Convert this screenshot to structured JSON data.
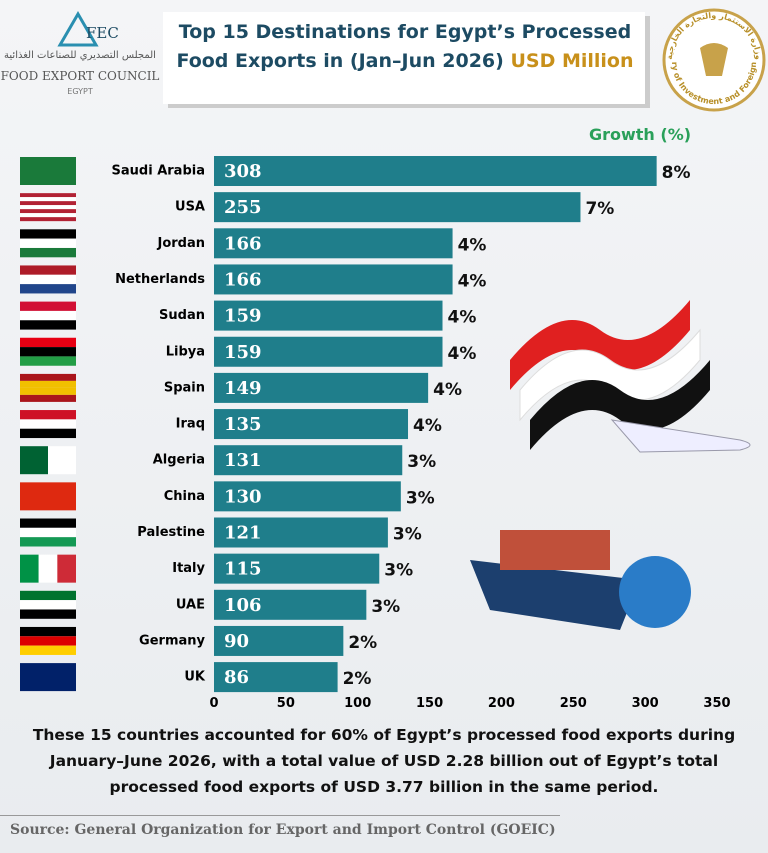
{
  "header": {
    "logo": {
      "abbr": "FEC",
      "arabic": "المجلس التصديري للصناعات الغذائية",
      "name": "FOOD EXPORT COUNCIL",
      "country": "EGYPT"
    },
    "ministry": {
      "arabic": "وزارة الاستثمار والتجارة الخارجية",
      "name": "Ministry of Investment and Foreign Trade"
    }
  },
  "chart_data": {
    "type": "bar",
    "orientation": "horizontal",
    "title": "Top 15 Destinations for Egypt’s Processed Food Exports in (Jan–Jun 2026)",
    "unit": "USD Million",
    "categories": [
      "Saudi Arabia",
      "USA",
      "Jordan",
      "Netherlands",
      "Sudan",
      "Libya",
      "Spain",
      "Iraq",
      "Algeria",
      "China",
      "Palestine",
      "Italy",
      "UAE",
      "Germany",
      "UK"
    ],
    "values": [
      308,
      255,
      166,
      166,
      159,
      159,
      149,
      135,
      131,
      130,
      121,
      115,
      106,
      90,
      86
    ],
    "color": "#1f7e8b",
    "growth": {
      "name": "Growth (%)",
      "values": [
        8,
        7,
        4,
        4,
        4,
        4,
        4,
        4,
        3,
        3,
        3,
        3,
        3,
        2,
        2
      ],
      "value_labels": [
        "8%",
        "7%",
        "4%",
        "4%",
        "4%",
        "4%",
        "4%",
        "4%",
        "3%",
        "3%",
        "3%",
        "3%",
        "3%",
        "2%",
        "2%"
      ],
      "color": "#2aa05a"
    },
    "xlim": [
      0,
      350
    ],
    "xticks": [
      0,
      50,
      100,
      150,
      200,
      250,
      300,
      350
    ],
    "grid": false
  },
  "note": "These 15 countries accounted for 60% of Egypt’s processed food exports during January–June 2026, with a total value of USD 2.28 billion out of Egypt’s total processed food exports of USD 3.77 billion in the same period.",
  "source": "Source: General Organization for Export and Import Control (GOEIC)"
}
